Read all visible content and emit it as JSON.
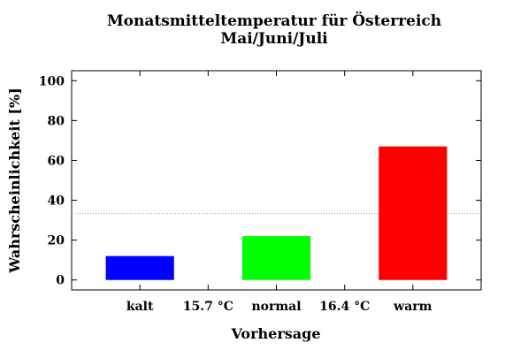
{
  "chart_data": {
    "type": "bar",
    "title": "Monatsmitteltemperatur für Österreich",
    "subtitle": "Mai/Juni/Juli",
    "xlabel": "Vorhersage",
    "ylabel": "Wahrscheinlichkeit [%]",
    "ylim": [
      -5,
      105
    ],
    "yticks": [
      0,
      20,
      40,
      60,
      80,
      100
    ],
    "categories": [
      "kalt",
      "normal",
      "warm"
    ],
    "values": [
      12,
      22,
      67
    ],
    "colors": [
      "#0000ff",
      "#00ff00",
      "#ff0000"
    ],
    "thresholds": [
      "15.7 °C",
      "16.4 °C"
    ],
    "reference_line": 33.3,
    "grid": false
  }
}
